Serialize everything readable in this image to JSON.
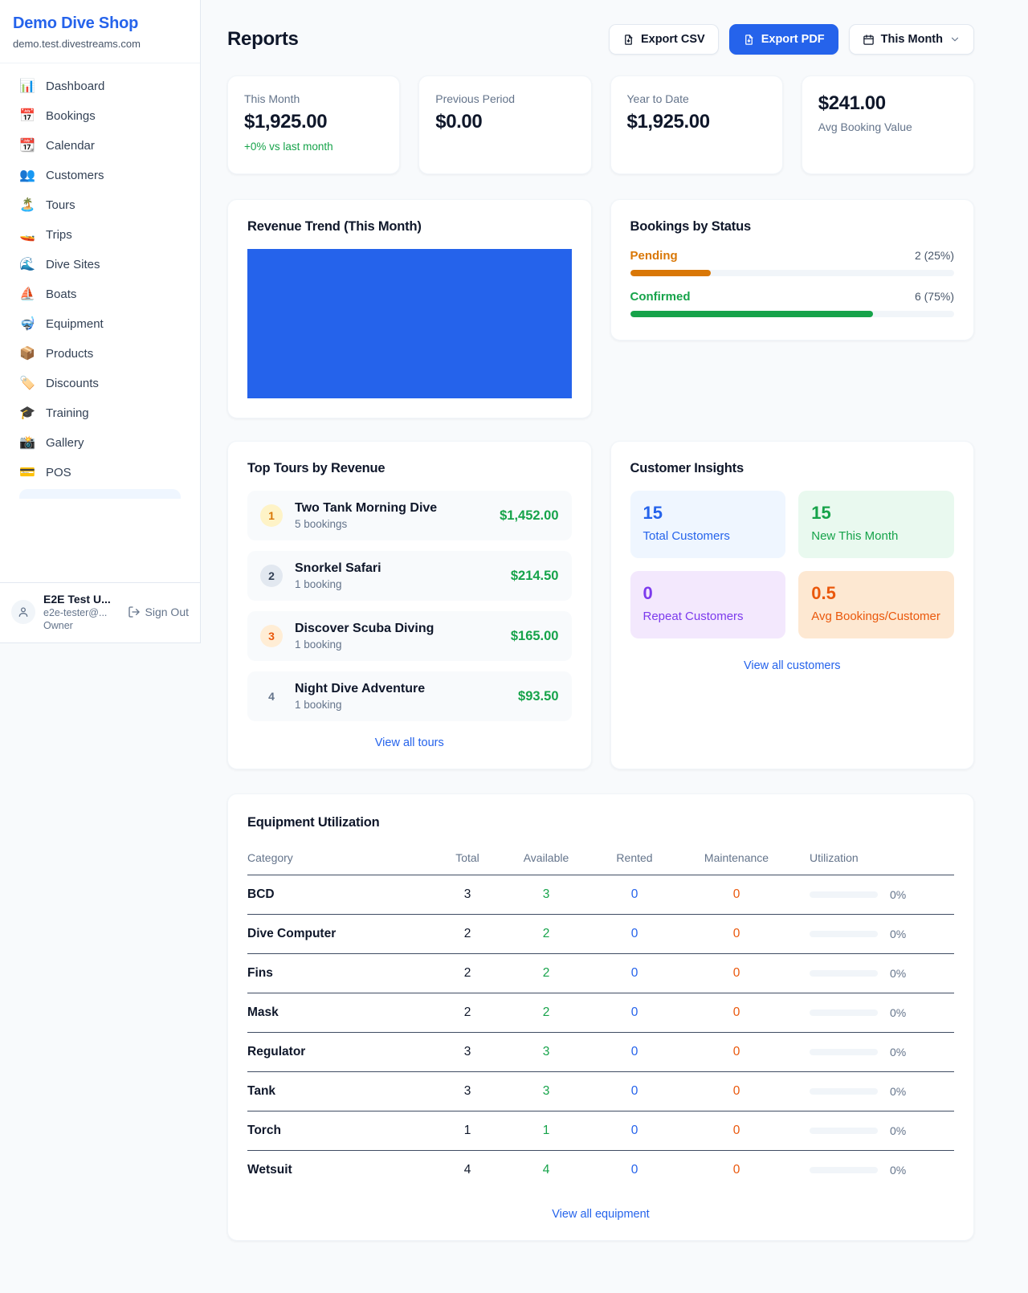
{
  "colors": {
    "accent_blue": "#2563eb",
    "green": "#16a34a",
    "amber": "#d97706",
    "orange": "#ea580c",
    "purple": "#7c3aed"
  },
  "sidebar": {
    "shop_name": "Demo Dive Shop",
    "domain": "demo.test.divestreams.com",
    "items": [
      {
        "glyph": "📊",
        "label": "Dashboard"
      },
      {
        "glyph": "📅",
        "label": "Bookings"
      },
      {
        "glyph": "📆",
        "label": "Calendar"
      },
      {
        "glyph": "👥",
        "label": "Customers"
      },
      {
        "glyph": "🏝️",
        "label": "Tours"
      },
      {
        "glyph": "🚤",
        "label": "Trips"
      },
      {
        "glyph": "🌊",
        "label": "Dive Sites"
      },
      {
        "glyph": "⛵",
        "label": "Boats"
      },
      {
        "glyph": "🤿",
        "label": "Equipment"
      },
      {
        "glyph": "📦",
        "label": "Products"
      },
      {
        "glyph": "🏷️",
        "label": "Discounts"
      },
      {
        "glyph": "🎓",
        "label": "Training"
      },
      {
        "glyph": "📸",
        "label": "Gallery"
      },
      {
        "glyph": "💳",
        "label": "POS"
      }
    ],
    "user": {
      "name": "E2E Test U...",
      "email": "e2e-tester@...",
      "role": "Owner",
      "sign_out_label": "Sign Out"
    }
  },
  "header": {
    "title": "Reports",
    "export_csv_label": "Export CSV",
    "export_pdf_label": "Export PDF",
    "period_label": "This Month"
  },
  "stats": [
    {
      "label": "This Month",
      "value": "$1,925.00",
      "delta": "+0% vs last month"
    },
    {
      "label": "Previous Period",
      "value": "$0.00"
    },
    {
      "label": "Year to Date",
      "value": "$1,925.00"
    },
    {
      "label": "Avg Booking Value",
      "value": "$241.00"
    }
  ],
  "revenue_trend": {
    "title": "Revenue Trend (This Month)",
    "fill_pct": 100
  },
  "bookings_by_status": {
    "title": "Bookings by Status",
    "rows": [
      {
        "label": "Pending",
        "count_label": "2 (25%)",
        "pct": 25
      },
      {
        "label": "Confirmed",
        "count_label": "6 (75%)",
        "pct": 75
      }
    ]
  },
  "top_tours": {
    "title": "Top Tours by Revenue",
    "view_all_label": "View all tours",
    "rows": [
      {
        "rank": "1",
        "name": "Two Tank Morning Dive",
        "bookings": "5 bookings",
        "revenue": "$1,452.00"
      },
      {
        "rank": "2",
        "name": "Snorkel Safari",
        "bookings": "1 booking",
        "revenue": "$214.50"
      },
      {
        "rank": "3",
        "name": "Discover Scuba Diving",
        "bookings": "1 booking",
        "revenue": "$165.00"
      },
      {
        "rank": "4",
        "name": "Night Dive Adventure",
        "bookings": "1 booking",
        "revenue": "$93.50"
      }
    ]
  },
  "customer_insights": {
    "title": "Customer Insights",
    "view_all_label": "View all customers",
    "tiles": [
      {
        "value": "15",
        "label": "Total Customers"
      },
      {
        "value": "15",
        "label": "New This Month"
      },
      {
        "value": "0",
        "label": "Repeat Customers"
      },
      {
        "value": "0.5",
        "label": "Avg Bookings/Customer"
      }
    ]
  },
  "equipment": {
    "title": "Equipment Utilization",
    "view_all_label": "View all equipment",
    "columns": [
      "Category",
      "Total",
      "Available",
      "Rented",
      "Maintenance",
      "Utilization"
    ],
    "rows": [
      {
        "category": "BCD",
        "total": "3",
        "available": "3",
        "rented": "0",
        "maintenance": "0",
        "utilization": "0%",
        "util_pct": 0
      },
      {
        "category": "Dive Computer",
        "total": "2",
        "available": "2",
        "rented": "0",
        "maintenance": "0",
        "utilization": "0%",
        "util_pct": 0
      },
      {
        "category": "Fins",
        "total": "2",
        "available": "2",
        "rented": "0",
        "maintenance": "0",
        "utilization": "0%",
        "util_pct": 0
      },
      {
        "category": "Mask",
        "total": "2",
        "available": "2",
        "rented": "0",
        "maintenance": "0",
        "utilization": "0%",
        "util_pct": 0
      },
      {
        "category": "Regulator",
        "total": "3",
        "available": "3",
        "rented": "0",
        "maintenance": "0",
        "utilization": "0%",
        "util_pct": 0
      },
      {
        "category": "Tank",
        "total": "3",
        "available": "3",
        "rented": "0",
        "maintenance": "0",
        "utilization": "0%",
        "util_pct": 0
      },
      {
        "category": "Torch",
        "total": "1",
        "available": "1",
        "rented": "0",
        "maintenance": "0",
        "utilization": "0%",
        "util_pct": 0
      },
      {
        "category": "Wetsuit",
        "total": "4",
        "available": "4",
        "rented": "0",
        "maintenance": "0",
        "utilization": "0%",
        "util_pct": 0
      }
    ]
  }
}
